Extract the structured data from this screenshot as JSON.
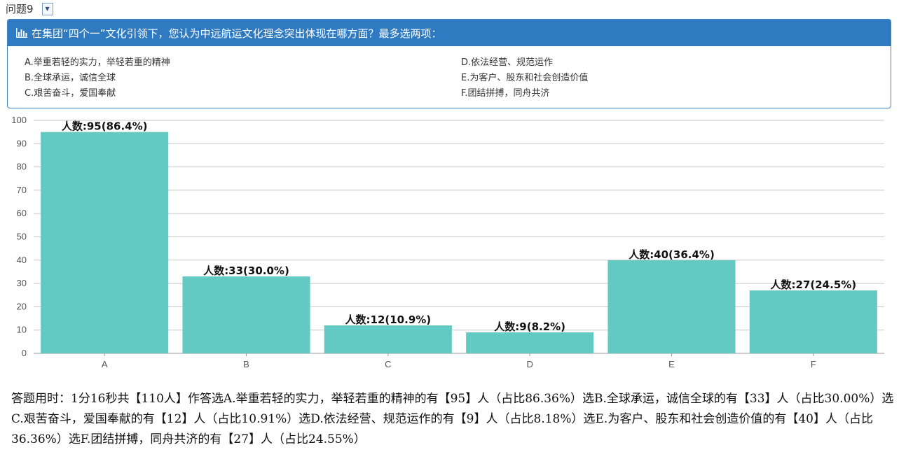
{
  "selector": {
    "value": "问题9"
  },
  "question": {
    "title": "在集团“四个一”文化引领下，您认为中远航运文化理念突出体现在哪方面？最多选两项：",
    "options": [
      "A.举重若轻的实力，举轻若重的精神",
      "B.全球承运，诚信全球",
      "C.艰苦奋斗，爱国奉献",
      "D.依法经营、规范运作",
      "E.为客户、股东和社会创造价值",
      "F.团结拼搏，同舟共济"
    ]
  },
  "colors": {
    "bar": "#64c9c3",
    "header": "#2f7ac0",
    "grid": "#c8c8c8"
  },
  "chart_data": {
    "type": "bar",
    "categories": [
      "A",
      "B",
      "C",
      "D",
      "E",
      "F"
    ],
    "values": [
      95,
      33,
      12,
      9,
      40,
      27
    ],
    "data_labels": [
      "人数:95(86.4%)",
      "人数:33(30.0%)",
      "人数:12(10.9%)",
      "人数:9(8.2%)",
      "人数:40(36.4%)",
      "人数:27(24.5%)"
    ],
    "y_ticks": [
      0,
      10,
      20,
      30,
      40,
      50,
      60,
      70,
      80,
      90,
      100
    ],
    "ylim": [
      0,
      100
    ],
    "grid": true,
    "legend": "none"
  },
  "summary": "答题用时：1分16秒共【110人】作答选A.举重若轻的实力，举轻若重的精神的有【95】人（占比86.36%）选B.全球承运，诚信全球的有【33】人（占比30.00%）选C.艰苦奋斗，爱国奉献的有【12】人（占比10.91%）选D.依法经营、规范运作的有【9】人（占比8.18%）选E.为客户、股东和社会创造价值的有【40】人（占比36.36%）选F.团结拼搏，同舟共济的有【27】人（占比24.55%）"
}
